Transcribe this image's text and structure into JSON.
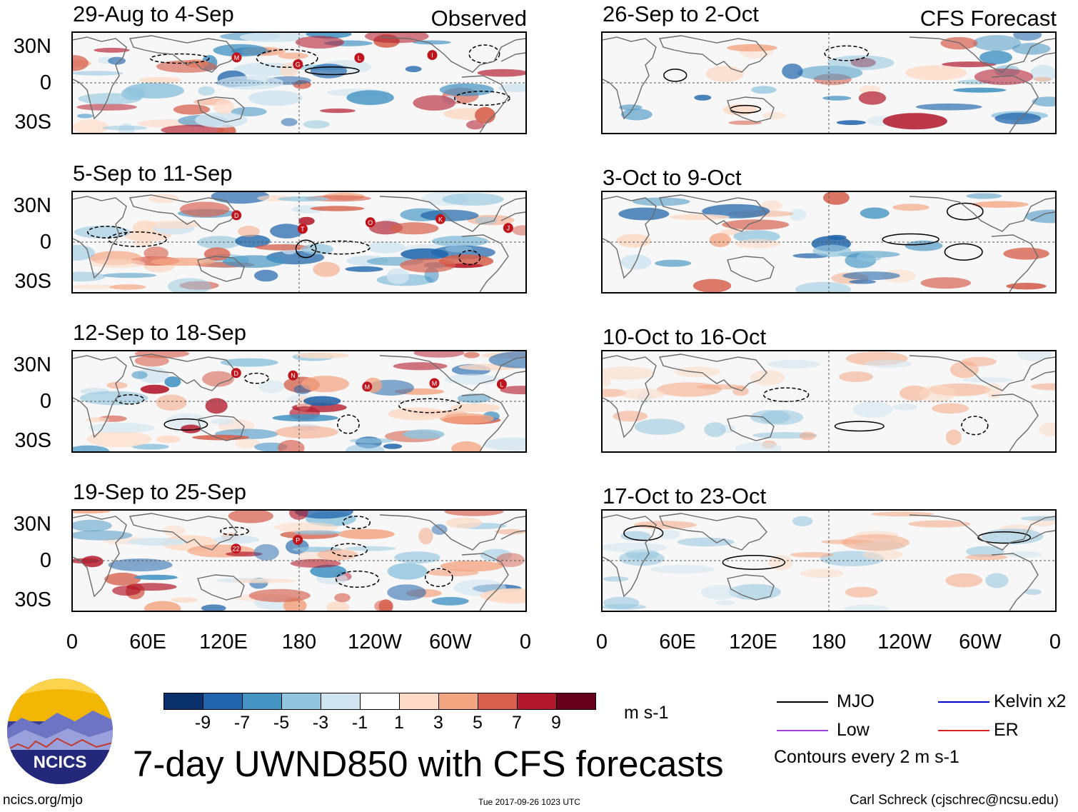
{
  "observed_label": "Observed",
  "forecast_label": "CFS Forecast",
  "panels": [
    {
      "title": "29-Aug to 4-Sep",
      "kind": "observed",
      "storms": [
        "M",
        "G",
        "L",
        "I"
      ]
    },
    {
      "title": "5-Sep to 11-Sep",
      "kind": "observed",
      "storms": [
        "D",
        "T",
        "O",
        "K",
        "J"
      ]
    },
    {
      "title": "12-Sep to 18-Sep",
      "kind": "observed",
      "storms": [
        "D",
        "N",
        "M",
        "M",
        "L"
      ]
    },
    {
      "title": "19-Sep to 25-Sep",
      "kind": "observed",
      "storms": [
        "22",
        "P"
      ]
    },
    {
      "title": "26-Sep to 2-Oct",
      "kind": "forecast",
      "storms": []
    },
    {
      "title": "3-Oct to 9-Oct",
      "kind": "forecast",
      "storms": []
    },
    {
      "title": "10-Oct to 16-Oct",
      "kind": "forecast",
      "storms": []
    },
    {
      "title": "17-Oct to 23-Oct",
      "kind": "forecast",
      "storms": []
    }
  ],
  "lat_labels": [
    "30N",
    "0",
    "30S"
  ],
  "lon_labels": [
    "0",
    "60E",
    "120E",
    "180",
    "120W",
    "60W",
    "0"
  ],
  "colorbar": {
    "colors": [
      "#08306b",
      "#2166ac",
      "#4393c3",
      "#92c5de",
      "#d1e5f0",
      "#ffffff",
      "#fddbc7",
      "#f4a582",
      "#d6604d",
      "#b2182b",
      "#67001f"
    ],
    "labels": [
      "-9",
      "-7",
      "-5",
      "-3",
      "-1",
      "1",
      "3",
      "5",
      "7",
      "9"
    ],
    "units": "m s-1"
  },
  "title": "7-day UWND850 with CFS forecasts",
  "legend": {
    "items": [
      {
        "label": "MJO",
        "color": "#000000"
      },
      {
        "label": "Kelvin x2",
        "color": "#0000cc"
      },
      {
        "label": "Low",
        "color": "#a040e0"
      },
      {
        "label": "ER",
        "color": "#dd2222"
      }
    ],
    "note": "Contours every 2 m s-1"
  },
  "logo_text": "NCICS",
  "footer": {
    "url": "ncics.org/mjo",
    "timestamp": "Tue 2017-09-26 1023 UTC",
    "credit": "Carl Schreck (cjschrec@ncsu.edu)"
  }
}
